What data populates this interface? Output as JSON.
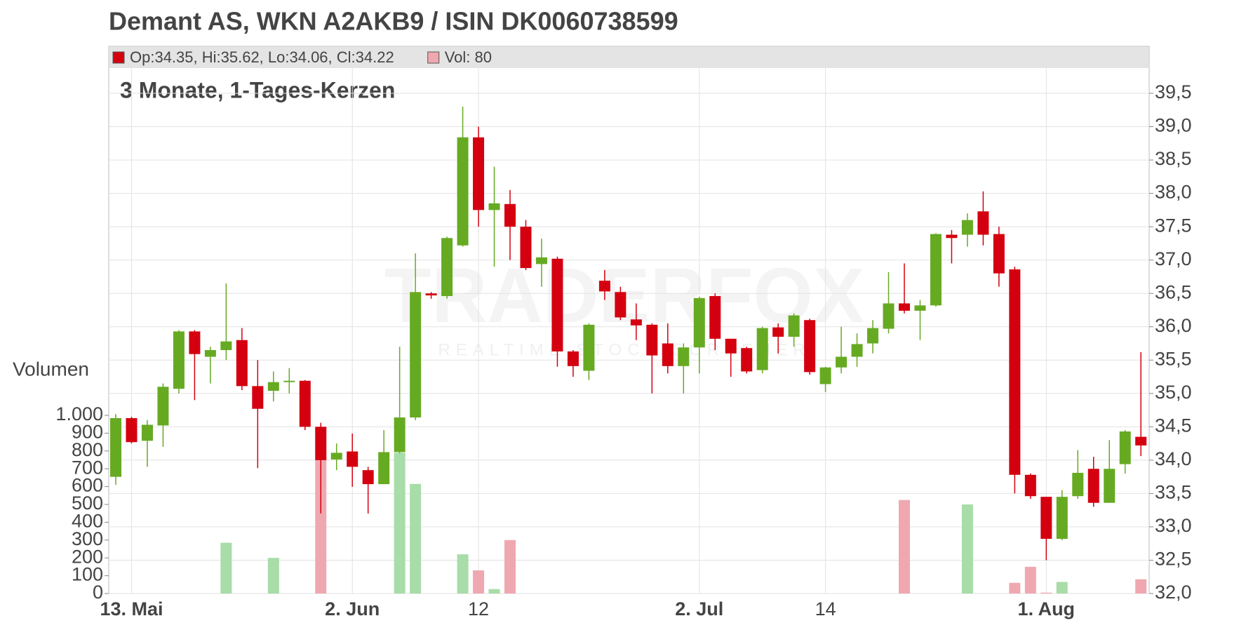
{
  "chart_data": {
    "type": "candlestick",
    "title": "Demant AS, WKN A2AKB9 / ISIN DK0060738599",
    "subtitle": "3 Monate, 1-Tages-Kerzen",
    "volume_label": "Volumen",
    "watermark": [
      "TRADERFOX",
      "REALTIME STOCK SCREENER"
    ],
    "legend": [
      {
        "text": "Op:34.35, Hi:35.62, Lo:34.06, Cl:34.22",
        "color": "#d40010"
      },
      {
        "text": "Vol: 80",
        "color": "#f0a8b0"
      }
    ],
    "up_color": "#66aa22",
    "down_color": "#d40010",
    "up_volume_color": "#a8dca8",
    "down_volume_color": "#f0a8b0",
    "grid": true,
    "categories": [
      null,
      "13. Mai",
      null,
      null,
      null,
      null,
      null,
      null,
      null,
      null,
      null,
      null,
      null,
      null,
      null,
      "2. Jun",
      null,
      null,
      null,
      null,
      null,
      null,
      null,
      "12",
      null,
      null,
      null,
      null,
      null,
      null,
      null,
      null,
      null,
      null,
      null,
      null,
      null,
      "2. Jul",
      null,
      null,
      null,
      null,
      null,
      null,
      null,
      "14",
      null,
      null,
      null,
      null,
      null,
      null,
      null,
      null,
      null,
      null,
      null,
      null,
      null,
      "1. Aug",
      null,
      null,
      null,
      null,
      null,
      null
    ],
    "open": [
      33.75,
      34.63,
      34.29,
      34.52,
      35.07,
      35.93,
      35.55,
      35.65,
      35.8,
      35.11,
      35.04,
      35.17,
      35.19,
      34.5,
      34.01,
      34.13,
      33.85,
      33.64,
      34.12,
      34.64,
      36.5,
      36.46,
      37.22,
      38.84,
      37.75,
      37.84,
      37.5,
      36.94,
      37.02,
      35.63,
      35.34,
      36.69,
      36.52,
      36.11,
      36.03,
      35.75,
      35.41,
      35.69,
      36.46,
      35.82,
      35.68,
      35.35,
      35.99,
      35.85,
      36.1,
      35.14,
      35.39,
      35.55,
      35.75,
      35.97,
      36.35,
      36.24,
      36.32,
      37.38,
      37.38,
      37.73,
      37.39,
      36.86,
      33.78,
      33.45,
      32.82,
      33.46,
      33.87,
      33.36,
      33.94,
      34.35
    ],
    "high": [
      34.69,
      34.65,
      34.6,
      35.15,
      35.95,
      35.95,
      35.7,
      36.65,
      35.98,
      35.5,
      35.33,
      35.38,
      35.2,
      34.56,
      34.25,
      34.4,
      33.9,
      34.45,
      35.7,
      37.1,
      36.52,
      37.35,
      39.3,
      39.0,
      38.4,
      38.05,
      37.6,
      37.32,
      37.05,
      35.65,
      36.05,
      36.85,
      36.6,
      36.35,
      36.05,
      36.05,
      35.75,
      36.45,
      36.5,
      35.82,
      35.7,
      36.0,
      36.05,
      36.2,
      36.12,
      35.4,
      36.0,
      35.9,
      36.1,
      36.82,
      36.95,
      36.4,
      37.4,
      37.45,
      37.7,
      38.03,
      37.5,
      36.9,
      33.8,
      33.45,
      33.55,
      34.15,
      34.05,
      34.3,
      34.45,
      35.62
    ],
    "low": [
      33.63,
      34.25,
      33.9,
      34.2,
      35.0,
      34.9,
      35.15,
      35.5,
      35.05,
      33.88,
      34.88,
      35.0,
      34.45,
      33.2,
      33.85,
      33.6,
      33.2,
      33.64,
      34.1,
      34.6,
      36.42,
      36.42,
      37.2,
      37.5,
      36.9,
      37.0,
      36.85,
      36.6,
      35.4,
      35.25,
      35.2,
      36.4,
      36.1,
      35.8,
      35.0,
      35.3,
      35.0,
      35.3,
      35.65,
      35.25,
      35.3,
      35.3,
      35.6,
      35.7,
      35.28,
      35.02,
      35.3,
      35.4,
      35.6,
      35.9,
      36.2,
      35.8,
      36.3,
      36.95,
      37.2,
      37.22,
      36.6,
      33.5,
      33.42,
      32.5,
      32.8,
      33.42,
      33.3,
      33.36,
      33.8,
      34.06
    ],
    "close": [
      34.63,
      34.27,
      34.53,
      35.1,
      35.93,
      35.59,
      35.65,
      35.78,
      35.11,
      34.77,
      35.17,
      35.19,
      34.5,
      34.0,
      34.11,
      33.9,
      33.64,
      34.12,
      34.64,
      36.52,
      36.47,
      37.33,
      38.84,
      37.75,
      37.85,
      37.5,
      36.88,
      37.04,
      35.63,
      35.41,
      36.03,
      36.53,
      36.14,
      36.02,
      35.57,
      35.41,
      35.69,
      36.43,
      35.82,
      35.6,
      35.33,
      35.98,
      35.85,
      36.17,
      35.32,
      35.39,
      35.55,
      35.74,
      35.98,
      36.35,
      36.24,
      36.32,
      37.39,
      37.33,
      37.6,
      37.38,
      36.8,
      33.78,
      33.46,
      32.82,
      33.45,
      33.81,
      33.36,
      33.87,
      34.43,
      34.22
    ],
    "volume": [
      0,
      0,
      0,
      0,
      0,
      0,
      0,
      285,
      0,
      0,
      200,
      0,
      0,
      750,
      0,
      0,
      0,
      0,
      790,
      615,
      0,
      0,
      220,
      130,
      25,
      300,
      0,
      0,
      0,
      0,
      0,
      0,
      0,
      0,
      0,
      0,
      0,
      0,
      0,
      0,
      0,
      0,
      0,
      0,
      0,
      0,
      0,
      0,
      0,
      0,
      525,
      0,
      0,
      0,
      500,
      0,
      0,
      60,
      150,
      5,
      65,
      0,
      0,
      0,
      0,
      80
    ],
    "ylim": [
      32.0,
      39.5
    ],
    "yticks": [
      {
        "value": 32.0,
        "label": "32,0"
      },
      {
        "value": 32.5,
        "label": "32,5"
      },
      {
        "value": 33.0,
        "label": "33,0"
      },
      {
        "value": 33.5,
        "label": "33,5"
      },
      {
        "value": 34.0,
        "label": "34,0"
      },
      {
        "value": 34.5,
        "label": "34,5"
      },
      {
        "value": 35.0,
        "label": "35,0"
      },
      {
        "value": 35.5,
        "label": "35,5"
      },
      {
        "value": 36.0,
        "label": "36,0"
      },
      {
        "value": 36.5,
        "label": "36,5"
      },
      {
        "value": 37.0,
        "label": "37,0"
      },
      {
        "value": 37.5,
        "label": "37,5"
      },
      {
        "value": 38.0,
        "label": "38,0"
      },
      {
        "value": 38.5,
        "label": "38,5"
      },
      {
        "value": 39.0,
        "label": "39,0"
      },
      {
        "value": 39.5,
        "label": "39,5"
      }
    ],
    "y2lim": [
      0,
      1000
    ],
    "y2ticks": [
      0,
      100,
      200,
      300,
      400,
      500,
      600,
      700,
      800,
      900,
      {
        "value": 1000,
        "label": "1.000"
      }
    ]
  }
}
